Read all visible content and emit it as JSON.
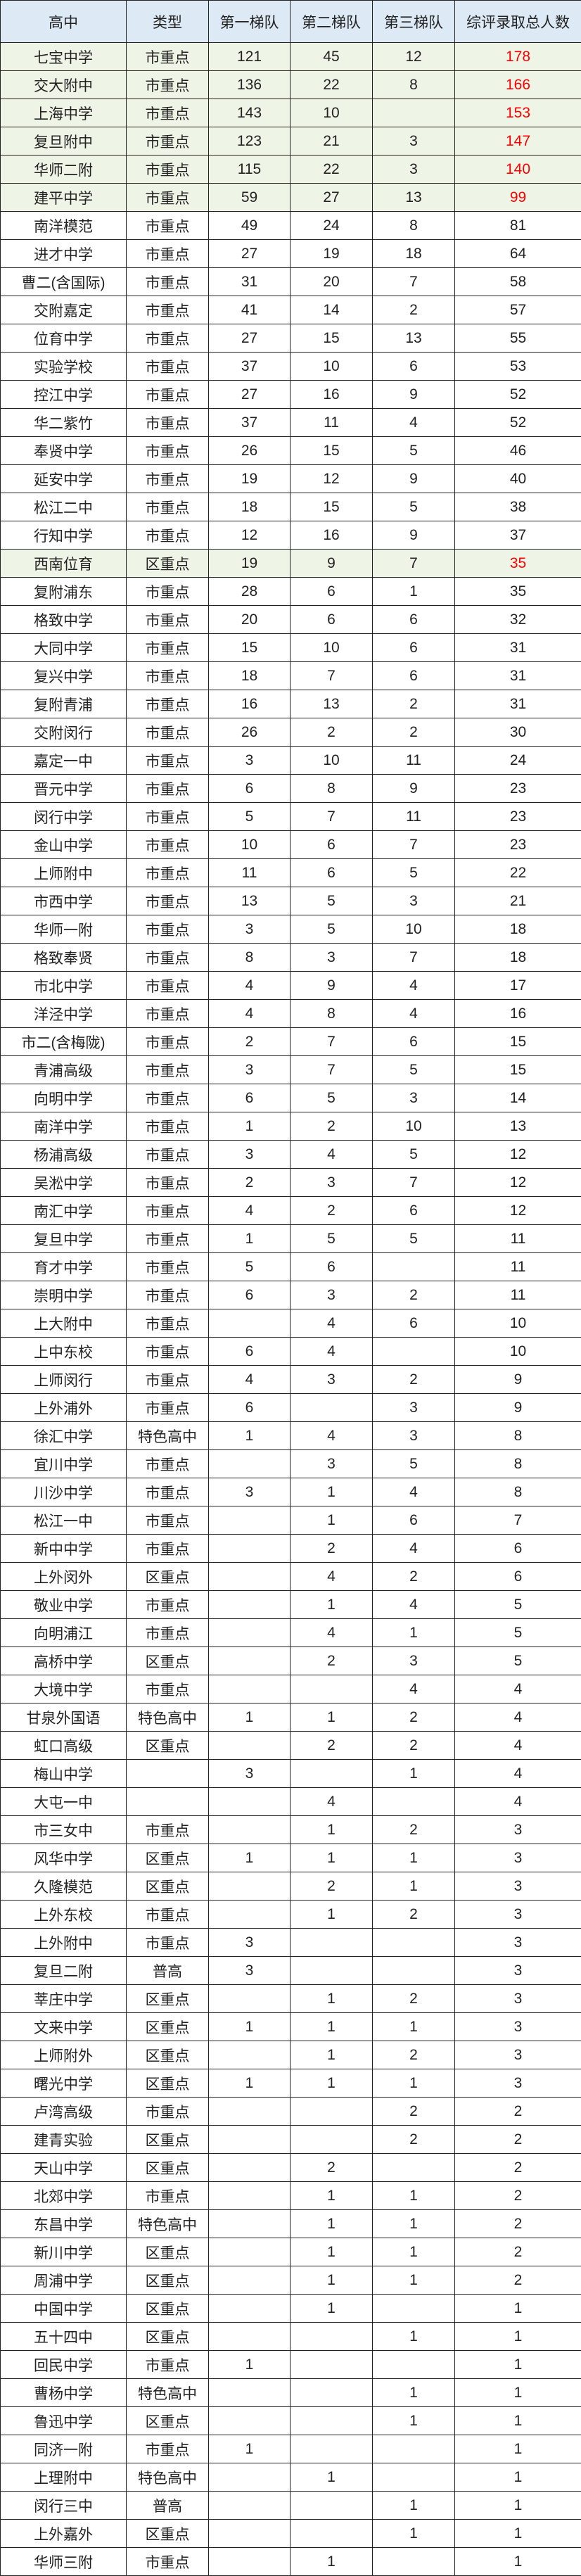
{
  "table": {
    "headers": [
      "高中",
      "类型",
      "第一梯队",
      "第二梯队",
      "第三梯队",
      "综评录取总人数"
    ],
    "highlight_bg": "#eef5e7",
    "header_bg": "#ddeaf6",
    "highlight_total_color": "#ff0000",
    "rows": [
      {
        "school": "七宝中学",
        "type": "市重点",
        "t1": "121",
        "t2": "45",
        "t3": "12",
        "total": "178",
        "highlight": true
      },
      {
        "school": "交大附中",
        "type": "市重点",
        "t1": "136",
        "t2": "22",
        "t3": "8",
        "total": "166",
        "highlight": true
      },
      {
        "school": "上海中学",
        "type": "市重点",
        "t1": "143",
        "t2": "10",
        "t3": "",
        "total": "153",
        "highlight": true
      },
      {
        "school": "复旦附中",
        "type": "市重点",
        "t1": "123",
        "t2": "21",
        "t3": "3",
        "total": "147",
        "highlight": true
      },
      {
        "school": "华师二附",
        "type": "市重点",
        "t1": "115",
        "t2": "22",
        "t3": "3",
        "total": "140",
        "highlight": true
      },
      {
        "school": "建平中学",
        "type": "市重点",
        "t1": "59",
        "t2": "27",
        "t3": "13",
        "total": "99",
        "highlight": true
      },
      {
        "school": "南洋模范",
        "type": "市重点",
        "t1": "49",
        "t2": "24",
        "t3": "8",
        "total": "81"
      },
      {
        "school": "进才中学",
        "type": "市重点",
        "t1": "27",
        "t2": "19",
        "t3": "18",
        "total": "64"
      },
      {
        "school": "曹二(含国际)",
        "type": "市重点",
        "t1": "31",
        "t2": "20",
        "t3": "7",
        "total": "58"
      },
      {
        "school": "交附嘉定",
        "type": "市重点",
        "t1": "41",
        "t2": "14",
        "t3": "2",
        "total": "57"
      },
      {
        "school": "位育中学",
        "type": "市重点",
        "t1": "27",
        "t2": "15",
        "t3": "13",
        "total": "55"
      },
      {
        "school": "实验学校",
        "type": "市重点",
        "t1": "37",
        "t2": "10",
        "t3": "6",
        "total": "53"
      },
      {
        "school": "控江中学",
        "type": "市重点",
        "t1": "27",
        "t2": "16",
        "t3": "9",
        "total": "52"
      },
      {
        "school": "华二紫竹",
        "type": "市重点",
        "t1": "37",
        "t2": "11",
        "t3": "4",
        "total": "52"
      },
      {
        "school": "奉贤中学",
        "type": "市重点",
        "t1": "26",
        "t2": "15",
        "t3": "5",
        "total": "46"
      },
      {
        "school": "延安中学",
        "type": "市重点",
        "t1": "19",
        "t2": "12",
        "t3": "9",
        "total": "40"
      },
      {
        "school": "松江二中",
        "type": "市重点",
        "t1": "18",
        "t2": "15",
        "t3": "5",
        "total": "38"
      },
      {
        "school": "行知中学",
        "type": "市重点",
        "t1": "12",
        "t2": "16",
        "t3": "9",
        "total": "37"
      },
      {
        "school": "西南位育",
        "type": "区重点",
        "t1": "19",
        "t2": "9",
        "t3": "7",
        "total": "35",
        "highlight": true
      },
      {
        "school": "复附浦东",
        "type": "市重点",
        "t1": "28",
        "t2": "6",
        "t3": "1",
        "total": "35"
      },
      {
        "school": "格致中学",
        "type": "市重点",
        "t1": "20",
        "t2": "6",
        "t3": "6",
        "total": "32"
      },
      {
        "school": "大同中学",
        "type": "市重点",
        "t1": "15",
        "t2": "10",
        "t3": "6",
        "total": "31"
      },
      {
        "school": "复兴中学",
        "type": "市重点",
        "t1": "18",
        "t2": "7",
        "t3": "6",
        "total": "31"
      },
      {
        "school": "复附青浦",
        "type": "市重点",
        "t1": "16",
        "t2": "13",
        "t3": "2",
        "total": "31"
      },
      {
        "school": "交附闵行",
        "type": "市重点",
        "t1": "26",
        "t2": "2",
        "t3": "2",
        "total": "30"
      },
      {
        "school": "嘉定一中",
        "type": "市重点",
        "t1": "3",
        "t2": "10",
        "t3": "11",
        "total": "24"
      },
      {
        "school": "晋元中学",
        "type": "市重点",
        "t1": "6",
        "t2": "8",
        "t3": "9",
        "total": "23"
      },
      {
        "school": "闵行中学",
        "type": "市重点",
        "t1": "5",
        "t2": "7",
        "t3": "11",
        "total": "23"
      },
      {
        "school": "金山中学",
        "type": "市重点",
        "t1": "10",
        "t2": "6",
        "t3": "7",
        "total": "23"
      },
      {
        "school": "上师附中",
        "type": "市重点",
        "t1": "11",
        "t2": "6",
        "t3": "5",
        "total": "22"
      },
      {
        "school": "市西中学",
        "type": "市重点",
        "t1": "13",
        "t2": "5",
        "t3": "3",
        "total": "21"
      },
      {
        "school": "华师一附",
        "type": "市重点",
        "t1": "3",
        "t2": "5",
        "t3": "10",
        "total": "18"
      },
      {
        "school": "格致奉贤",
        "type": "市重点",
        "t1": "8",
        "t2": "3",
        "t3": "7",
        "total": "18"
      },
      {
        "school": "市北中学",
        "type": "市重点",
        "t1": "4",
        "t2": "9",
        "t3": "4",
        "total": "17"
      },
      {
        "school": "洋泾中学",
        "type": "市重点",
        "t1": "4",
        "t2": "8",
        "t3": "4",
        "total": "16"
      },
      {
        "school": "市二(含梅陇)",
        "type": "市重点",
        "t1": "2",
        "t2": "7",
        "t3": "6",
        "total": "15"
      },
      {
        "school": "青浦高级",
        "type": "市重点",
        "t1": "3",
        "t2": "7",
        "t3": "5",
        "total": "15"
      },
      {
        "school": "向明中学",
        "type": "市重点",
        "t1": "6",
        "t2": "5",
        "t3": "3",
        "total": "14"
      },
      {
        "school": "南洋中学",
        "type": "市重点",
        "t1": "1",
        "t2": "2",
        "t3": "10",
        "total": "13"
      },
      {
        "school": "杨浦高级",
        "type": "市重点",
        "t1": "3",
        "t2": "4",
        "t3": "5",
        "total": "12"
      },
      {
        "school": "吴淞中学",
        "type": "市重点",
        "t1": "2",
        "t2": "3",
        "t3": "7",
        "total": "12"
      },
      {
        "school": "南汇中学",
        "type": "市重点",
        "t1": "4",
        "t2": "2",
        "t3": "6",
        "total": "12"
      },
      {
        "school": "复旦中学",
        "type": "市重点",
        "t1": "1",
        "t2": "5",
        "t3": "5",
        "total": "11"
      },
      {
        "school": "育才中学",
        "type": "市重点",
        "t1": "5",
        "t2": "6",
        "t3": "",
        "total": "11"
      },
      {
        "school": "崇明中学",
        "type": "市重点",
        "t1": "6",
        "t2": "3",
        "t3": "2",
        "total": "11"
      },
      {
        "school": "上大附中",
        "type": "市重点",
        "t1": "",
        "t2": "4",
        "t3": "6",
        "total": "10"
      },
      {
        "school": "上中东校",
        "type": "市重点",
        "t1": "6",
        "t2": "4",
        "t3": "",
        "total": "10"
      },
      {
        "school": "上师闵行",
        "type": "市重点",
        "t1": "4",
        "t2": "3",
        "t3": "2",
        "total": "9"
      },
      {
        "school": "上外浦外",
        "type": "市重点",
        "t1": "6",
        "t2": "",
        "t3": "3",
        "total": "9"
      },
      {
        "school": "徐汇中学",
        "type": "特色高中",
        "t1": "1",
        "t2": "4",
        "t3": "3",
        "total": "8"
      },
      {
        "school": "宜川中学",
        "type": "市重点",
        "t1": "",
        "t2": "3",
        "t3": "5",
        "total": "8"
      },
      {
        "school": "川沙中学",
        "type": "市重点",
        "t1": "3",
        "t2": "1",
        "t3": "4",
        "total": "8"
      },
      {
        "school": "松江一中",
        "type": "市重点",
        "t1": "",
        "t2": "1",
        "t3": "6",
        "total": "7"
      },
      {
        "school": "新中中学",
        "type": "市重点",
        "t1": "",
        "t2": "2",
        "t3": "4",
        "total": "6"
      },
      {
        "school": "上外闵外",
        "type": "区重点",
        "t1": "",
        "t2": "4",
        "t3": "2",
        "total": "6"
      },
      {
        "school": "敬业中学",
        "type": "市重点",
        "t1": "",
        "t2": "1",
        "t3": "4",
        "total": "5"
      },
      {
        "school": "向明浦江",
        "type": "市重点",
        "t1": "",
        "t2": "4",
        "t3": "1",
        "total": "5"
      },
      {
        "school": "高桥中学",
        "type": "区重点",
        "t1": "",
        "t2": "2",
        "t3": "3",
        "total": "5"
      },
      {
        "school": "大境中学",
        "type": "市重点",
        "t1": "",
        "t2": "",
        "t3": "4",
        "total": "4"
      },
      {
        "school": "甘泉外国语",
        "type": "特色高中",
        "t1": "1",
        "t2": "1",
        "t3": "2",
        "total": "4"
      },
      {
        "school": "虹口高级",
        "type": "区重点",
        "t1": "",
        "t2": "2",
        "t3": "2",
        "total": "4"
      },
      {
        "school": "梅山中学",
        "type": "",
        "t1": "3",
        "t2": "",
        "t3": "1",
        "total": "4"
      },
      {
        "school": "大屯一中",
        "type": "",
        "t1": "",
        "t2": "4",
        "t3": "",
        "total": "4"
      },
      {
        "school": "市三女中",
        "type": "市重点",
        "t1": "",
        "t2": "1",
        "t3": "2",
        "total": "3"
      },
      {
        "school": "风华中学",
        "type": "区重点",
        "t1": "1",
        "t2": "1",
        "t3": "1",
        "total": "3"
      },
      {
        "school": "久隆模范",
        "type": "区重点",
        "t1": "",
        "t2": "2",
        "t3": "1",
        "total": "3"
      },
      {
        "school": "上外东校",
        "type": "市重点",
        "t1": "",
        "t2": "1",
        "t3": "2",
        "total": "3"
      },
      {
        "school": "上外附中",
        "type": "市重点",
        "t1": "3",
        "t2": "",
        "t3": "",
        "total": "3"
      },
      {
        "school": "复旦二附",
        "type": "普高",
        "t1": "3",
        "t2": "",
        "t3": "",
        "total": "3"
      },
      {
        "school": "莘庄中学",
        "type": "区重点",
        "t1": "",
        "t2": "1",
        "t3": "2",
        "total": "3"
      },
      {
        "school": "文来中学",
        "type": "区重点",
        "t1": "1",
        "t2": "1",
        "t3": "1",
        "total": "3"
      },
      {
        "school": "上师附外",
        "type": "区重点",
        "t1": "",
        "t2": "1",
        "t3": "2",
        "total": "3"
      },
      {
        "school": "曙光中学",
        "type": "区重点",
        "t1": "1",
        "t2": "1",
        "t3": "1",
        "total": "3"
      },
      {
        "school": "卢湾高级",
        "type": "市重点",
        "t1": "",
        "t2": "",
        "t3": "2",
        "total": "2"
      },
      {
        "school": "建青实验",
        "type": "区重点",
        "t1": "",
        "t2": "",
        "t3": "2",
        "total": "2"
      },
      {
        "school": "天山中学",
        "type": "区重点",
        "t1": "",
        "t2": "2",
        "t3": "",
        "total": "2"
      },
      {
        "school": "北郊中学",
        "type": "市重点",
        "t1": "",
        "t2": "1",
        "t3": "1",
        "total": "2"
      },
      {
        "school": "东昌中学",
        "type": "特色高中",
        "t1": "",
        "t2": "1",
        "t3": "1",
        "total": "2"
      },
      {
        "school": "新川中学",
        "type": "区重点",
        "t1": "",
        "t2": "1",
        "t3": "1",
        "total": "2"
      },
      {
        "school": "周浦中学",
        "type": "区重点",
        "t1": "",
        "t2": "1",
        "t3": "1",
        "total": "2"
      },
      {
        "school": "中国中学",
        "type": "区重点",
        "t1": "",
        "t2": "1",
        "t3": "",
        "total": "1"
      },
      {
        "school": "五十四中",
        "type": "区重点",
        "t1": "",
        "t2": "",
        "t3": "1",
        "total": "1"
      },
      {
        "school": "回民中学",
        "type": "市重点",
        "t1": "1",
        "t2": "",
        "t3": "",
        "total": "1"
      },
      {
        "school": "曹杨中学",
        "type": "特色高中",
        "t1": "",
        "t2": "",
        "t3": "1",
        "total": "1"
      },
      {
        "school": "鲁迅中学",
        "type": "区重点",
        "t1": "",
        "t2": "",
        "t3": "1",
        "total": "1"
      },
      {
        "school": "同济一附",
        "type": "市重点",
        "t1": "1",
        "t2": "",
        "t3": "",
        "total": "1"
      },
      {
        "school": "上理附中",
        "type": "特色高中",
        "t1": "",
        "t2": "1",
        "t3": "",
        "total": "1"
      },
      {
        "school": "闵行三中",
        "type": "普高",
        "t1": "",
        "t2": "",
        "t3": "1",
        "total": "1"
      },
      {
        "school": "上外嘉外",
        "type": "区重点",
        "t1": "",
        "t2": "",
        "t3": "1",
        "total": "1"
      },
      {
        "school": "华师三附",
        "type": "市重点",
        "t1": "",
        "t2": "1",
        "t3": "",
        "total": "1"
      }
    ]
  }
}
